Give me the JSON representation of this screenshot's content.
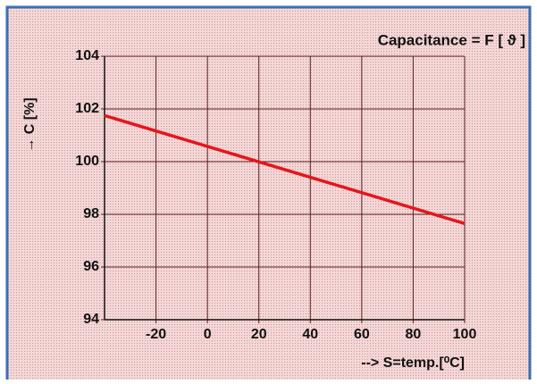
{
  "chart_data": {
    "type": "line",
    "title": "Capacitance = F [ ϑ ]",
    "y_label": "→ C [%]",
    "x_label": "--> S=temp.[⁰C]",
    "x": [
      -40,
      100
    ],
    "series": [
      {
        "name": "C",
        "color": "#e5161c",
        "values": [
          101.75,
          97.65
        ]
      }
    ],
    "xlim": [
      -40,
      100
    ],
    "xticks": [
      -20,
      0,
      20,
      40,
      60,
      80,
      100
    ],
    "ylim": [
      94,
      104
    ],
    "yticks": [
      94,
      96,
      98,
      100,
      102,
      104
    ],
    "grid": true
  }
}
